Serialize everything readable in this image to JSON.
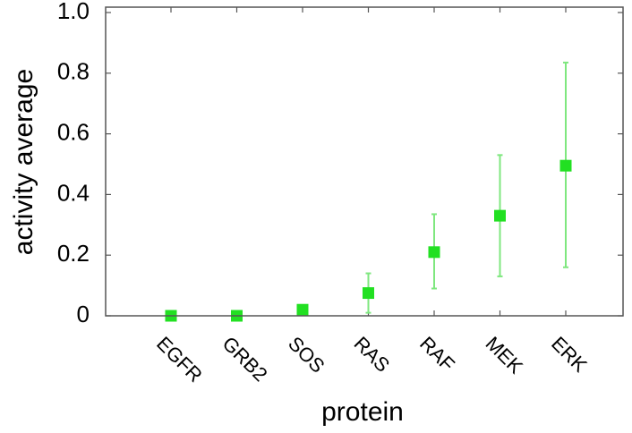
{
  "chart_data": {
    "type": "scatter",
    "xlabel": "protein",
    "ylabel": "activity average",
    "ylim": [
      0,
      1.0
    ],
    "yticks": [
      "0",
      "0.2",
      "0.4",
      "0.6",
      "0.8",
      "1.0"
    ],
    "categories": [
      "EGFR",
      "GRB2",
      "SOS",
      "RAS",
      "RAF",
      "MEK",
      "ERK"
    ],
    "series": [
      {
        "values": [
          0.0,
          0.0,
          0.02,
          0.075,
          0.21,
          0.33,
          0.495
        ],
        "error_low": [
          0.0,
          0.0,
          0.02,
          0.01,
          0.09,
          0.13,
          0.16
        ],
        "error_high": [
          0.0,
          0.0,
          0.02,
          0.14,
          0.335,
          0.53,
          0.835
        ]
      }
    ],
    "grid": false,
    "marker_color": "#22e022",
    "errorbar_color": "#7fe77f"
  }
}
